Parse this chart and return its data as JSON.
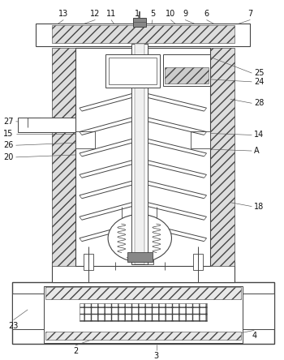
{
  "fig_width": 3.5,
  "fig_height": 4.44,
  "dpi": 100,
  "bg_color": "#ffffff",
  "lc": "#444444",
  "lw": 0.7,
  "label_fontsize": 7.0,
  "label_color": "#111111"
}
